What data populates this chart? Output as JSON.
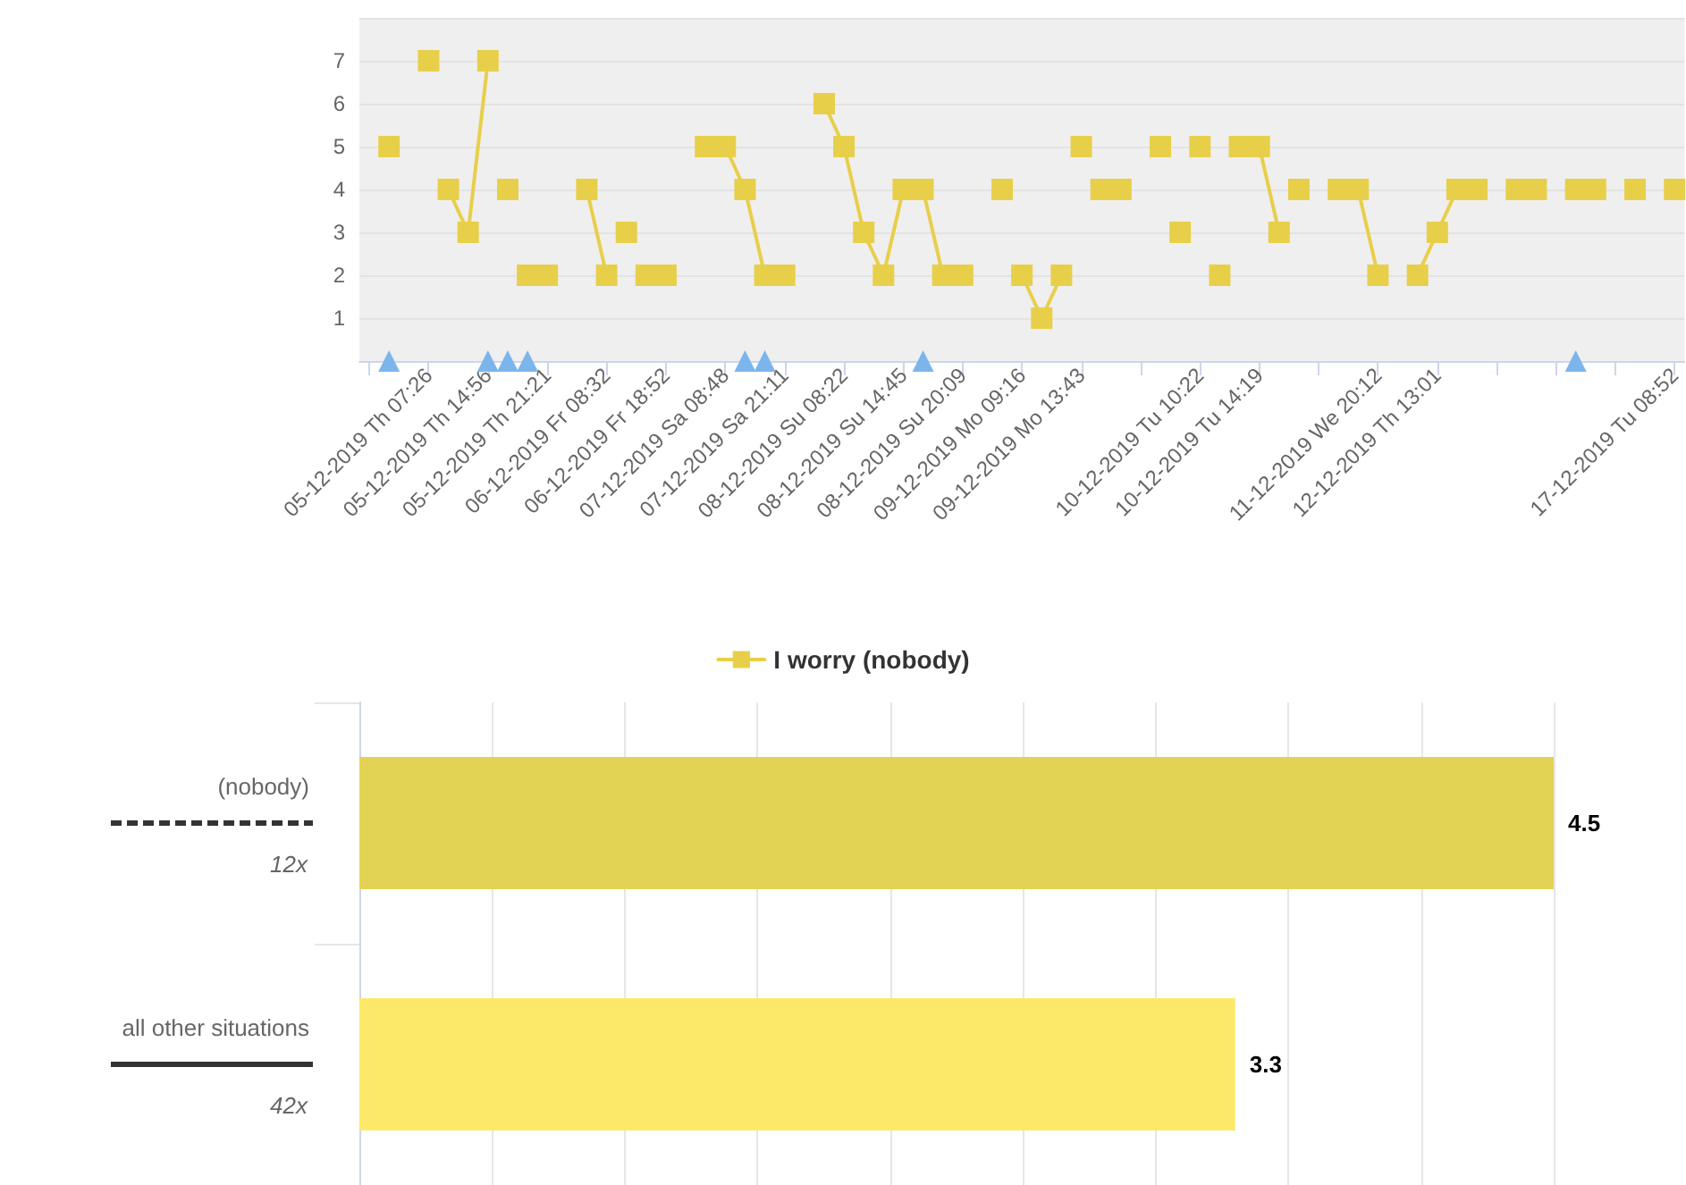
{
  "chart_data": [
    {
      "type": "line",
      "legend": "bottom",
      "grid": "y",
      "marker": "square",
      "ylim": [
        0,
        8
      ],
      "yticks": [
        {
          "value": 0,
          "label": null
        },
        1,
        2,
        3,
        4,
        5,
        6,
        7,
        {
          "value": 8,
          "label": null
        }
      ],
      "categories": [
        null,
        null,
        null,
        "05-12-2019 Th 07:26",
        null,
        null,
        "05-12-2019 Th 14:56",
        null,
        null,
        "05-12-2019 Th 21:21",
        null,
        null,
        "06-12-2019 Fr 08:32",
        null,
        null,
        "06-12-2019 Fr 18:52",
        null,
        null,
        "07-12-2019 Sa 08:48",
        null,
        null,
        "07-12-2019 Sa 21:11",
        null,
        null,
        "08-12-2019 Su 08:22",
        null,
        null,
        "08-12-2019 Su 14:45",
        null,
        null,
        "08-12-2019 Su 20:09",
        null,
        null,
        "09-12-2019 Mo 09:16",
        null,
        null,
        "09-12-2019 Mo 13:43",
        null,
        null,
        null,
        null,
        null,
        "10-12-2019 Tu 10:22",
        null,
        null,
        "10-12-2019 Tu 14:19",
        null,
        null,
        null,
        null,
        null,
        "11-12-2019 We 20:12",
        null,
        null,
        "12-12-2019 Th 13:01",
        null,
        null,
        null,
        null,
        null,
        null,
        null,
        null,
        null,
        null,
        null,
        "17-12-2019 Tu 08:52"
      ],
      "series": [
        {
          "name": "I worry (nobody)",
          "type": "line",
          "color": "#e8cf4a",
          "values": [
            null,
            null,
            null,
            null,
            4,
            3,
            7,
            null,
            null,
            null,
            null,
            4,
            2,
            null,
            null,
            null,
            null,
            5,
            5,
            4,
            2,
            2,
            null,
            6,
            5,
            3,
            2,
            4,
            4,
            2,
            2,
            null,
            null,
            2,
            1,
            2,
            null,
            4,
            4,
            null,
            null,
            null,
            null,
            null,
            5,
            5,
            3,
            null,
            null,
            4,
            4,
            2,
            null,
            2,
            3,
            4,
            4,
            null,
            4,
            4,
            null,
            4,
            4,
            null,
            null,
            null,
            null
          ]
        },
        {
          "type": "scatter",
          "color": "#e8cf4a",
          "values": [
            null,
            5,
            null,
            7,
            null,
            null,
            null,
            4,
            2,
            2,
            null,
            null,
            null,
            3,
            2,
            2,
            null,
            null,
            null,
            null,
            null,
            null,
            null,
            null,
            null,
            null,
            null,
            null,
            null,
            null,
            null,
            null,
            4,
            null,
            null,
            null,
            5,
            null,
            null,
            null,
            5,
            3,
            5,
            2,
            null,
            null,
            null,
            4,
            null,
            null,
            null,
            null,
            null,
            null,
            null,
            null,
            null,
            null,
            null,
            null,
            null,
            null,
            null,
            null,
            4,
            null,
            4
          ]
        },
        {
          "type": "scatter",
          "color": "#7cb5ec",
          "marker": "triangle",
          "values": [
            null,
            0,
            null,
            null,
            null,
            null,
            0,
            0,
            0,
            null,
            null,
            null,
            null,
            null,
            null,
            null,
            null,
            null,
            null,
            0,
            0,
            null,
            null,
            null,
            null,
            null,
            null,
            null,
            0,
            null,
            null,
            null,
            null,
            null,
            null,
            null,
            null,
            null,
            null,
            null,
            null,
            null,
            null,
            null,
            null,
            null,
            null,
            null,
            null,
            null,
            null,
            null,
            null,
            null,
            null,
            null,
            null,
            null,
            null,
            null,
            null,
            0,
            null,
            null,
            null,
            null,
            null
          ]
        }
      ]
    },
    {
      "type": "bar",
      "orientation": "horizontal",
      "tick_labels": "y",
      "grid": "x",
      "data_labels": true,
      "categories": [
        "(nobody)",
        "all other situations"
      ],
      "values": [
        4.5,
        3.3
      ],
      "colors": [
        "#e3d355",
        "#fce96a"
      ],
      "xlim": [
        0,
        4.5
      ],
      "xticks": [
        {
          "value": 0,
          "label": null
        },
        {
          "value": 0.5,
          "label": null
        },
        {
          "value": 1,
          "label": null
        },
        {
          "value": 1.5,
          "label": null
        },
        {
          "value": 2,
          "label": null
        },
        {
          "value": 2.5,
          "label": null
        },
        {
          "value": 3,
          "label": null
        },
        {
          "value": 3.5,
          "label": null
        },
        {
          "value": 4,
          "label": null
        },
        {
          "value": 4.5,
          "label": null
        }
      ],
      "annotations": [
        "12x",
        "42x"
      ]
    }
  ]
}
